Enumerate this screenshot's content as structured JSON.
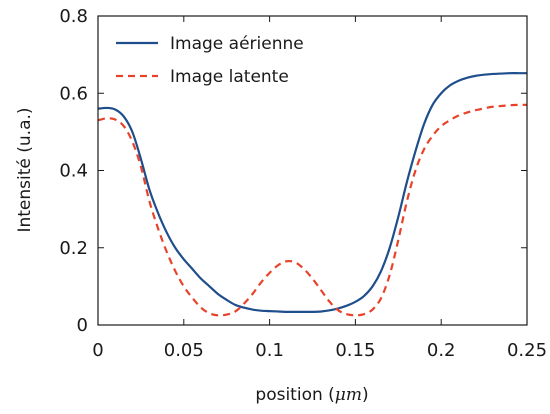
{
  "chart_data": {
    "type": "line",
    "xlabel_text": "position (",
    "xlabel_unit": "μm",
    "xlabel_close": ")",
    "ylabel": "Intensité (u.a.)",
    "xlim": [
      0,
      0.25
    ],
    "ylim": [
      0,
      0.8
    ],
    "xticks": [
      0,
      0.05,
      0.1,
      0.15,
      0.2,
      0.25
    ],
    "xtick_labels": [
      "0",
      "0.05",
      "0.1",
      "0.15",
      "0.2",
      "0.25"
    ],
    "yticks": [
      0,
      0.2,
      0.4,
      0.6,
      0.8
    ],
    "ytick_labels": [
      "0",
      "0.2",
      "0.4",
      "0.6",
      "0.8"
    ],
    "grid": false,
    "legend_position": "top-left",
    "series": [
      {
        "name": "Image aérienne",
        "color": "#1f4e8c",
        "style": "solid",
        "x": [
          0,
          0.005,
          0.01,
          0.015,
          0.02,
          0.025,
          0.03,
          0.035,
          0.04,
          0.045,
          0.05,
          0.055,
          0.06,
          0.065,
          0.07,
          0.075,
          0.08,
          0.085,
          0.09,
          0.095,
          0.1,
          0.105,
          0.11,
          0.115,
          0.12,
          0.125,
          0.13,
          0.135,
          0.14,
          0.145,
          0.15,
          0.155,
          0.16,
          0.165,
          0.17,
          0.175,
          0.18,
          0.185,
          0.19,
          0.195,
          0.2,
          0.205,
          0.21,
          0.215,
          0.22,
          0.225,
          0.23,
          0.235,
          0.24,
          0.245,
          0.25
        ],
        "y": [
          0.56,
          0.562,
          0.558,
          0.54,
          0.5,
          0.43,
          0.35,
          0.29,
          0.24,
          0.2,
          0.17,
          0.145,
          0.12,
          0.1,
          0.08,
          0.065,
          0.052,
          0.045,
          0.04,
          0.037,
          0.036,
          0.035,
          0.034,
          0.034,
          0.034,
          0.034,
          0.035,
          0.038,
          0.043,
          0.05,
          0.06,
          0.075,
          0.1,
          0.14,
          0.2,
          0.28,
          0.37,
          0.45,
          0.52,
          0.57,
          0.6,
          0.62,
          0.632,
          0.64,
          0.645,
          0.648,
          0.65,
          0.651,
          0.652,
          0.652,
          0.652
        ]
      },
      {
        "name": "Image latente",
        "color": "#e8432a",
        "style": "dashed",
        "x": [
          0,
          0.005,
          0.01,
          0.015,
          0.02,
          0.025,
          0.03,
          0.035,
          0.04,
          0.045,
          0.05,
          0.055,
          0.06,
          0.065,
          0.07,
          0.075,
          0.08,
          0.085,
          0.09,
          0.095,
          0.1,
          0.105,
          0.11,
          0.115,
          0.12,
          0.125,
          0.13,
          0.135,
          0.14,
          0.145,
          0.15,
          0.155,
          0.16,
          0.165,
          0.17,
          0.175,
          0.18,
          0.185,
          0.19,
          0.195,
          0.2,
          0.205,
          0.21,
          0.215,
          0.22,
          0.225,
          0.23,
          0.235,
          0.24,
          0.245,
          0.25
        ],
        "y": [
          0.53,
          0.535,
          0.532,
          0.515,
          0.475,
          0.41,
          0.32,
          0.25,
          0.19,
          0.14,
          0.1,
          0.07,
          0.045,
          0.03,
          0.025,
          0.027,
          0.035,
          0.055,
          0.08,
          0.11,
          0.135,
          0.155,
          0.165,
          0.162,
          0.145,
          0.12,
          0.09,
          0.06,
          0.038,
          0.028,
          0.025,
          0.028,
          0.04,
          0.07,
          0.13,
          0.22,
          0.32,
          0.4,
          0.455,
          0.49,
          0.515,
          0.53,
          0.542,
          0.55,
          0.556,
          0.561,
          0.565,
          0.567,
          0.569,
          0.57,
          0.57
        ]
      }
    ]
  }
}
